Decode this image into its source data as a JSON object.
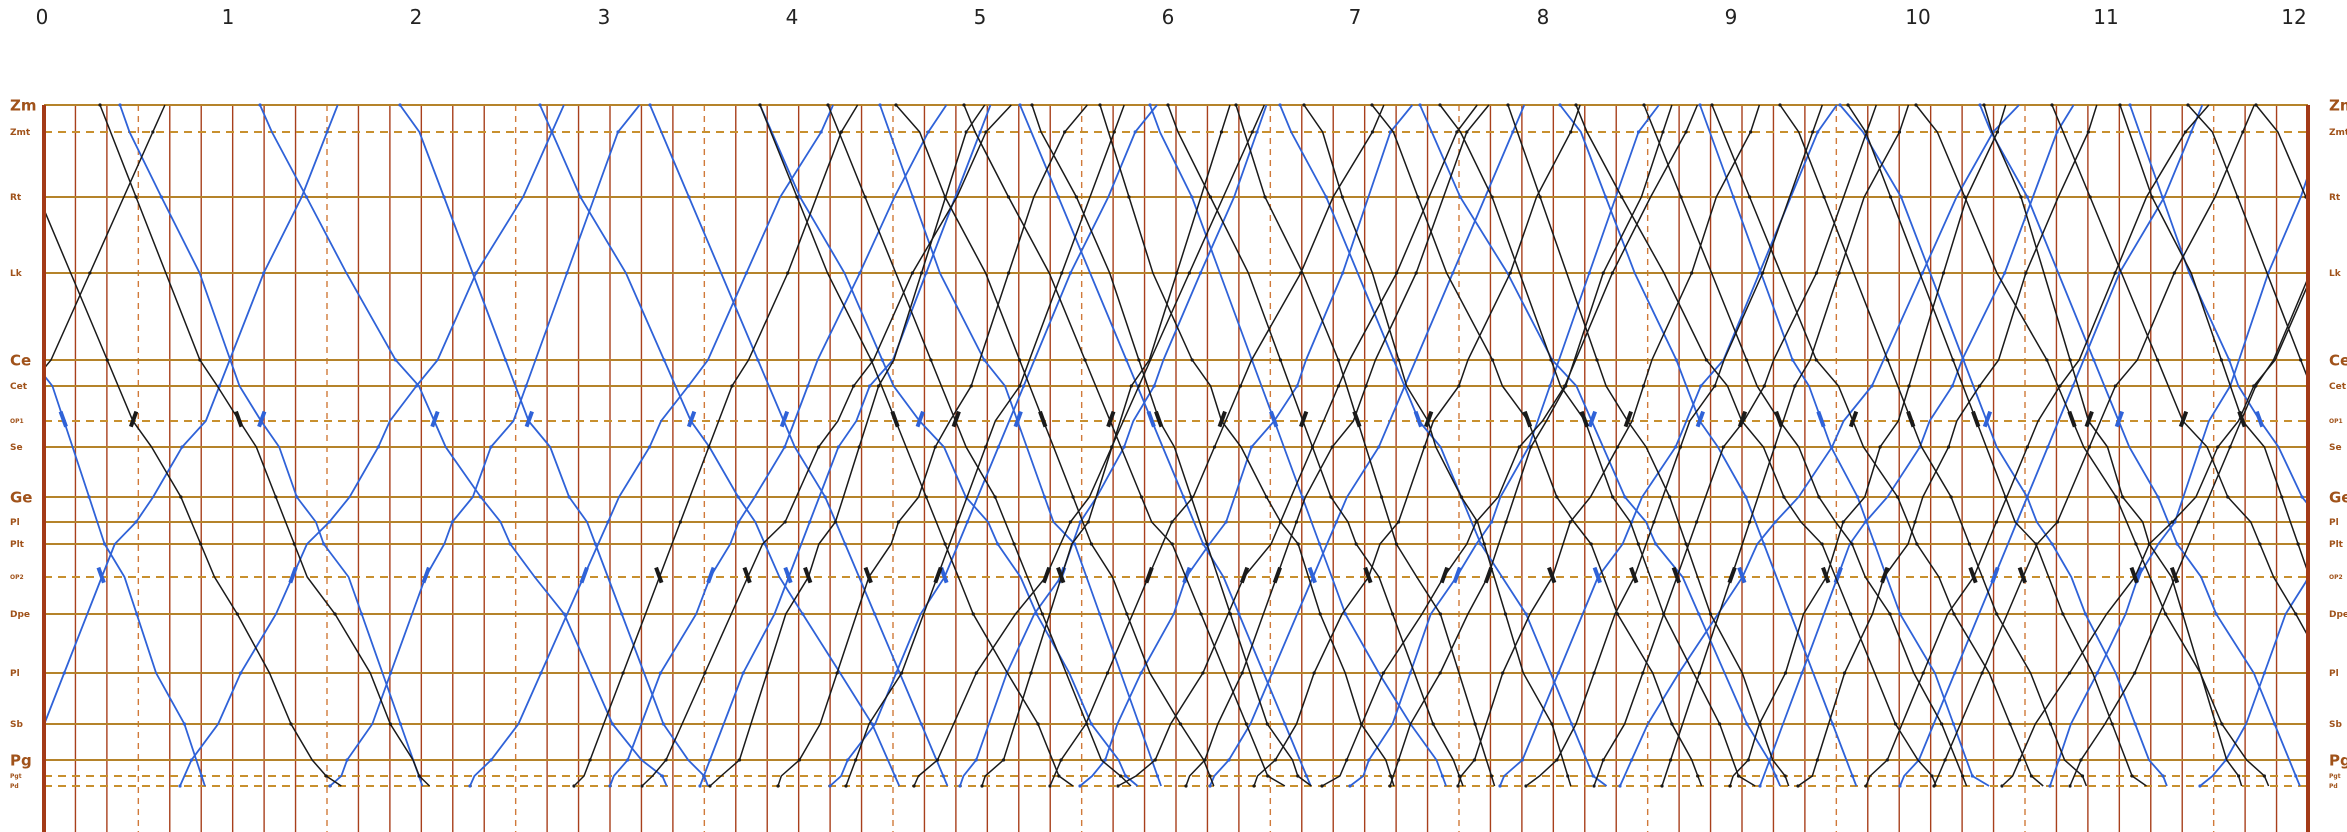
{
  "hours": [
    "0",
    "1",
    "2",
    "3",
    "4",
    "5",
    "6",
    "7",
    "8",
    "9",
    "10",
    "11",
    "12"
  ],
  "stations": [
    {
      "name": "Zm",
      "style": "major",
      "size": "big"
    },
    {
      "name": "Zmt",
      "style": "dash",
      "size": "small"
    },
    {
      "name": "Rt",
      "style": "major",
      "size": "small"
    },
    {
      "name": "Lk",
      "style": "major",
      "size": "small"
    },
    {
      "name": "Ce",
      "style": "major",
      "size": "big"
    },
    {
      "name": "Cet",
      "style": "major",
      "size": "small"
    },
    {
      "name": "OP1",
      "style": "dash",
      "size": "tiny"
    },
    {
      "name": "Se",
      "style": "major",
      "size": "small"
    },
    {
      "name": "Ge",
      "style": "major",
      "size": "big"
    },
    {
      "name": "Pl",
      "style": "major",
      "size": "small"
    },
    {
      "name": "Plt",
      "style": "major",
      "size": "small"
    },
    {
      "name": "OP2",
      "style": "dash",
      "size": "tiny"
    },
    {
      "name": "Dpe",
      "style": "major",
      "size": "small"
    },
    {
      "name": "Pl",
      "style": "major",
      "size": "small"
    },
    {
      "name": "Sb",
      "style": "major",
      "size": "small"
    },
    {
      "name": "Pg",
      "style": "major",
      "size": "big"
    },
    {
      "name": "Pgt",
      "style": "dash",
      "size": "tiny"
    },
    {
      "name": "Pd",
      "style": "dash",
      "size": "tiny"
    }
  ],
  "colors": {
    "major_line": "#b5832a",
    "dash_line": "#c8902f",
    "grid_line": "#a8401c",
    "grid_dash": "#d07a3a",
    "frame": "#a33a17",
    "train_blue": "#2f62d8",
    "train_black": "#1a1a1a",
    "label": "#a0521a"
  }
}
